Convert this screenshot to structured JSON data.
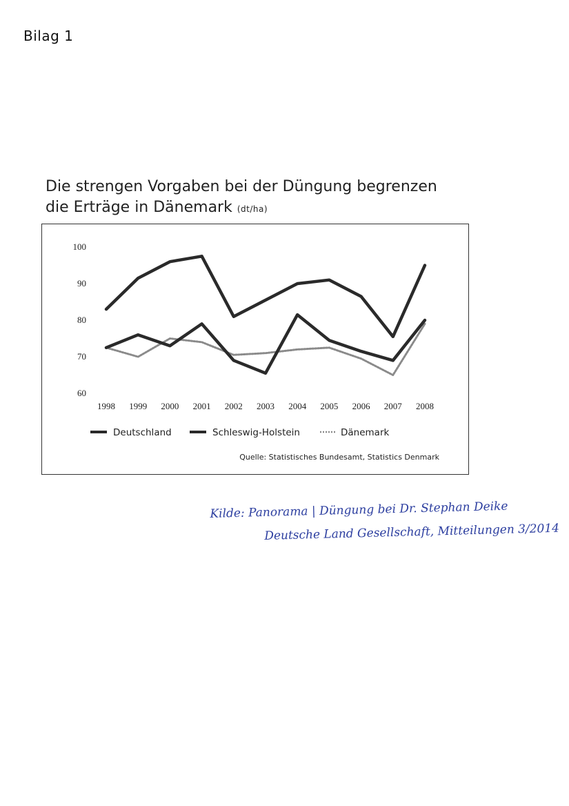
{
  "page": {
    "label": "Bilag 1"
  },
  "chart_data": {
    "type": "line",
    "title_line1": "Die strengen Vorgaben bei der Düngung begrenzen",
    "title_line2": "die Erträge in Dänemark",
    "unit": "(dt/ha)",
    "categories": [
      "1998",
      "1999",
      "2000",
      "2001",
      "2002",
      "2003",
      "2004",
      "2005",
      "2006",
      "2007",
      "2008"
    ],
    "ylim": [
      60,
      100
    ],
    "yticks": [
      100,
      90,
      80,
      70,
      60
    ],
    "grid": false,
    "legend_position": "bottom",
    "series": [
      {
        "name": "Deutschland",
        "color": "#2a2a2a",
        "style": "solid",
        "values": [
          83,
          91.5,
          96,
          97.5,
          81,
          85.5,
          90,
          91,
          86.5,
          75.5,
          95
        ]
      },
      {
        "name": "Schleswig-Holstein",
        "color": "#2a2a2a",
        "style": "solid",
        "values": [
          72.5,
          76,
          73,
          79,
          69,
          65.5,
          81.5,
          74.5,
          71.5,
          69,
          80
        ]
      },
      {
        "name": "Dänemark",
        "color": "#8a8a8a",
        "style": "dotted",
        "values": [
          72.5,
          70,
          75,
          74,
          70.5,
          71,
          72,
          72.5,
          69.5,
          65,
          79
        ]
      }
    ],
    "source": "Quelle: Statistisches Bundesamt, Statistics Denmark"
  },
  "handwritten_note": {
    "line1": "Kilde: Panorama | Düngung bei Dr. Stephan Deike",
    "line2": "Deutsche Land Gesellschaft, Mitteilungen 3/2014"
  }
}
